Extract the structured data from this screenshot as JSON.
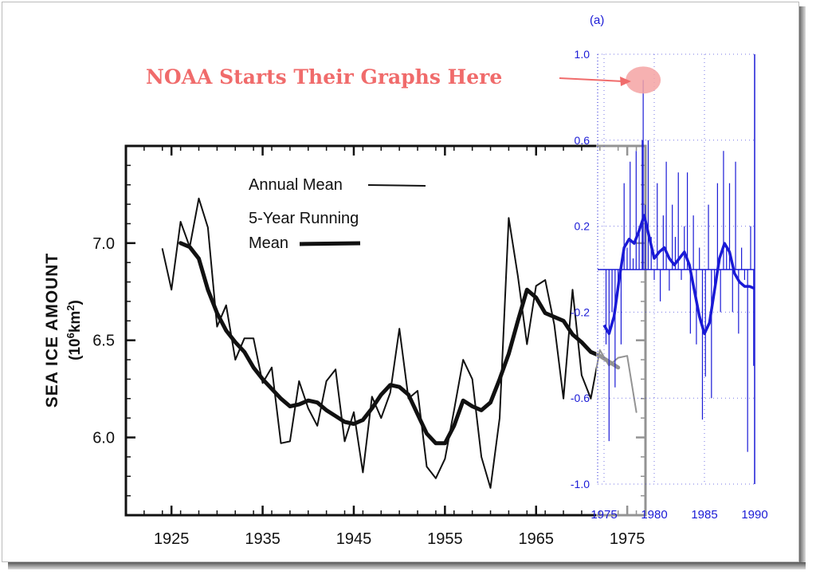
{
  "annotation": {
    "text": "NOAA Starts Their Graphs Here",
    "color": "#f06b6b"
  },
  "chart_data": [
    {
      "type": "line",
      "ylabel": "SEA ICE AMOUNT",
      "ylabel_unit_prefix": "(10",
      "ylabel_unit_exp1": "6",
      "ylabel_unit_mid": "km",
      "ylabel_unit_exp2": "2",
      "ylabel_unit_suffix": ")",
      "xlim": [
        1920,
        1977
      ],
      "ylim": [
        5.6,
        7.5
      ],
      "xticks": [
        1925,
        1935,
        1945,
        1955,
        1965,
        1975
      ],
      "yticks": [
        6.0,
        6.5,
        7.0
      ],
      "ytick_labels": [
        "6.0",
        "6.5",
        "7.0"
      ],
      "legend": {
        "annual": "Annual Mean",
        "running_line1": "5-Year Running",
        "running_line2": "Mean"
      },
      "color": "#111111",
      "series": [
        {
          "key": "annual",
          "x": [
            1924,
            1925,
            1926,
            1927,
            1928,
            1929,
            1930,
            1931,
            1932,
            1933,
            1934,
            1935,
            1936,
            1937,
            1938,
            1939,
            1940,
            1941,
            1942,
            1943,
            1944,
            1945,
            1946,
            1947,
            1948,
            1949,
            1950,
            1951,
            1952,
            1953,
            1954,
            1955,
            1956,
            1957,
            1958,
            1959,
            1960,
            1961,
            1962,
            1963,
            1964,
            1965,
            1966,
            1967,
            1968,
            1969,
            1970,
            1971,
            1972,
            1973,
            1974,
            1975,
            1976
          ],
          "y": [
            6.97,
            6.76,
            7.11,
            6.98,
            7.23,
            7.08,
            6.57,
            6.68,
            6.4,
            6.51,
            6.51,
            6.28,
            6.36,
            5.97,
            5.98,
            6.29,
            6.15,
            6.06,
            6.29,
            6.35,
            5.98,
            6.13,
            5.82,
            6.21,
            6.1,
            6.23,
            6.56,
            6.2,
            6.24,
            5.85,
            5.79,
            5.89,
            6.14,
            6.4,
            6.3,
            5.9,
            5.74,
            6.1,
            7.13,
            6.83,
            6.48,
            6.78,
            6.81,
            6.58,
            6.2,
            6.76,
            6.32,
            6.2,
            6.45,
            6.37,
            6.41,
            6.42,
            6.13
          ]
        },
        {
          "key": "running",
          "x": [
            1926,
            1927,
            1928,
            1929,
            1930,
            1931,
            1932,
            1933,
            1934,
            1935,
            1936,
            1937,
            1938,
            1939,
            1940,
            1941,
            1942,
            1943,
            1944,
            1945,
            1946,
            1947,
            1948,
            1949,
            1950,
            1951,
            1952,
            1953,
            1954,
            1955,
            1956,
            1957,
            1958,
            1959,
            1960,
            1961,
            1962,
            1963,
            1964,
            1965,
            1966,
            1967,
            1968,
            1969,
            1970,
            1971,
            1972,
            1973,
            1974
          ],
          "y": [
            7.0,
            6.98,
            6.92,
            6.76,
            6.64,
            6.55,
            6.49,
            6.44,
            6.36,
            6.3,
            6.25,
            6.2,
            6.16,
            6.17,
            6.19,
            6.18,
            6.14,
            6.11,
            6.08,
            6.07,
            6.09,
            6.15,
            6.22,
            6.27,
            6.26,
            6.22,
            6.12,
            6.02,
            5.97,
            5.97,
            6.06,
            6.19,
            6.16,
            6.14,
            6.18,
            6.3,
            6.43,
            6.6,
            6.76,
            6.72,
            6.64,
            6.62,
            6.6,
            6.53,
            6.49,
            6.44,
            6.42,
            6.39,
            6.36
          ]
        }
      ]
    },
    {
      "type": "line",
      "panel_label": "(a)",
      "xlim": [
        1975,
        1990
      ],
      "ylim": [
        -1.0,
        1.0
      ],
      "xticks": [
        1975,
        1980,
        1985,
        1990
      ],
      "yticks": [
        1.0,
        0.6,
        0.2,
        -0.2,
        -0.6,
        -1.0
      ],
      "ytick_labels": [
        "1.0",
        "0.6",
        "0.2",
        "-0.2",
        "-0.6",
        "-1.0"
      ],
      "color": "#1a1ad6",
      "highlight": {
        "x": 1978.9,
        "y": 0.88,
        "color": "#f4a3a3"
      },
      "series": [
        {
          "key": "monthly",
          "x": [
            1975.2,
            1975.5,
            1975.8,
            1976.1,
            1976.4,
            1976.7,
            1977.0,
            1977.3,
            1977.6,
            1977.9,
            1978.2,
            1978.5,
            1978.8,
            1978.9,
            1979.1,
            1979.4,
            1979.7,
            1980.0,
            1980.3,
            1980.6,
            1980.9,
            1981.2,
            1981.5,
            1981.8,
            1982.1,
            1982.4,
            1982.7,
            1983.0,
            1983.3,
            1983.6,
            1983.9,
            1984.2,
            1984.5,
            1984.8,
            1985.1,
            1985.4,
            1985.7,
            1986.0,
            1986.3,
            1986.6,
            1986.9,
            1987.2,
            1987.5,
            1987.8,
            1988.1,
            1988.4,
            1988.7,
            1989.0,
            1989.3,
            1989.6,
            1989.9
          ],
          "y": [
            -0.35,
            -0.8,
            -0.2,
            -0.55,
            -0.1,
            -0.35,
            0.4,
            0.1,
            0.5,
            0.05,
            0.55,
            0.2,
            0.6,
            0.88,
            0.3,
            0.6,
            0.15,
            -0.05,
            0.4,
            -0.15,
            0.25,
            0.5,
            -0.1,
            0.3,
            0.15,
            0.45,
            -0.05,
            0.2,
            0.45,
            -0.3,
            0.25,
            -0.35,
            0.1,
            -0.7,
            -0.5,
            0.3,
            -0.6,
            -0.1,
            0.4,
            -0.2,
            0.55,
            0.1,
            0.4,
            -0.2,
            0.5,
            -0.3,
            0.1,
            -0.05,
            -0.85,
            0.2,
            -0.45
          ]
        },
        {
          "key": "smoothed",
          "x": [
            1975.0,
            1975.5,
            1976.0,
            1976.5,
            1977.0,
            1977.5,
            1978.0,
            1978.5,
            1979.0,
            1979.5,
            1980.0,
            1980.5,
            1981.0,
            1981.5,
            1982.0,
            1982.5,
            1983.0,
            1983.5,
            1984.0,
            1984.5,
            1985.0,
            1985.5,
            1986.0,
            1986.5,
            1987.0,
            1987.5,
            1988.0,
            1988.5,
            1989.0,
            1989.5,
            1990.0
          ],
          "y": [
            -0.26,
            -0.3,
            -0.22,
            -0.05,
            0.1,
            0.14,
            0.12,
            0.18,
            0.25,
            0.15,
            0.05,
            0.08,
            0.1,
            0.05,
            0.02,
            0.05,
            0.08,
            0.02,
            -0.1,
            -0.22,
            -0.3,
            -0.25,
            -0.1,
            0.05,
            0.12,
            0.08,
            -0.02,
            -0.06,
            -0.08,
            -0.08,
            -0.09
          ]
        }
      ]
    }
  ]
}
